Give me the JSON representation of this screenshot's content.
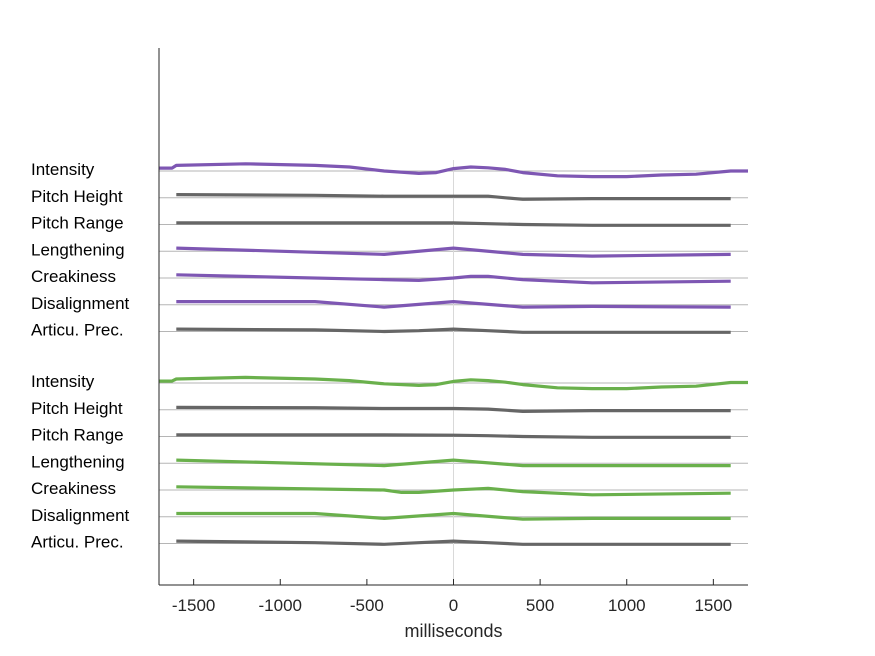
{
  "chart_data": {
    "type": "line",
    "xlabel": "milliseconds",
    "xlim": [
      -1700,
      1700
    ],
    "x_ticks": [
      -1500,
      -1000,
      -500,
      0,
      500,
      1000,
      1500
    ],
    "x_tick_labels": [
      "-1500",
      "-1000",
      "-500",
      "0",
      "500",
      "1000",
      "1500"
    ],
    "colors": {
      "purple": "#7e57b3",
      "green": "#6ab04c",
      "gray": "#666666",
      "baseline": "#b5b5b5",
      "zero": "#d9d9d9"
    },
    "groups": [
      {
        "series": [
          {
            "name": "Intensity",
            "color": "purple",
            "x": [
              -1700,
              -1625,
              -1600,
              -1200,
              -800,
              -600,
              -400,
              -200,
              -100,
              0,
              100,
              200,
              300,
              400,
              600,
              800,
              1000,
              1200,
              1400,
              1600,
              1700
            ],
            "y": [
              1.8,
              1.8,
              3.5,
              4.5,
              3.5,
              2.5,
              0,
              -1.5,
              -1,
              1.5,
              2.5,
              2,
              1,
              -1,
              -3,
              -3.5,
              -3.5,
              -2.5,
              -2,
              0,
              0
            ]
          },
          {
            "name": "Pitch Height",
            "color": "gray",
            "x": [
              -1600,
              -800,
              -400,
              0,
              200,
              300,
              400,
              800,
              1600
            ],
            "y": [
              2,
              1.5,
              1,
              1,
              1,
              0,
              -1,
              -0.5,
              -0.5
            ]
          },
          {
            "name": "Pitch Range",
            "color": "gray",
            "x": [
              -1600,
              -800,
              -400,
              0,
              200,
              400,
              800,
              1600
            ],
            "y": [
              1,
              1,
              1,
              1,
              0.5,
              0,
              -0.5,
              -0.5
            ]
          },
          {
            "name": "Lengthening",
            "color": "purple",
            "x": [
              -1600,
              -400,
              0,
              400,
              800,
              1600
            ],
            "y": [
              2,
              -2,
              2,
              -2,
              -3,
              -2
            ]
          },
          {
            "name": "Creakiness",
            "color": "purple",
            "x": [
              -1600,
              -400,
              -200,
              0,
              100,
              200,
              400,
              800,
              1600
            ],
            "y": [
              2,
              -1,
              -1.5,
              0,
              1,
              1,
              -1,
              -3,
              -2
            ]
          },
          {
            "name": "Disalignment",
            "color": "purple",
            "x": [
              -1600,
              -800,
              -400,
              0,
              400,
              800,
              1600
            ],
            "y": [
              2,
              2,
              -1.5,
              2,
              -1.5,
              -1,
              -1.5
            ]
          },
          {
            "name": "Articu. Prec.",
            "color": "gray",
            "x": [
              -1600,
              -800,
              -400,
              -200,
              0,
              200,
              400,
              800,
              1600
            ],
            "y": [
              1.5,
              1,
              0,
              0.5,
              1.5,
              0.5,
              -0.5,
              -0.5,
              -0.5
            ]
          }
        ]
      },
      {
        "series": [
          {
            "name": "Intensity",
            "color": "green",
            "x": [
              -1700,
              -1625,
              -1600,
              -1200,
              -800,
              -600,
              -400,
              -200,
              -100,
              0,
              100,
              200,
              300,
              400,
              600,
              800,
              1000,
              1200,
              1400,
              1600,
              1700
            ],
            "y": [
              1.2,
              1.2,
              2.5,
              3.5,
              2.5,
              1.5,
              -0.5,
              -1.5,
              -1,
              1,
              2,
              1.5,
              0.5,
              -1,
              -3,
              -3.5,
              -3.5,
              -2.5,
              -2,
              0.3,
              0.3
            ]
          },
          {
            "name": "Pitch Height",
            "color": "gray",
            "x": [
              -1600,
              -800,
              -400,
              0,
              200,
              300,
              400,
              800,
              1600
            ],
            "y": [
              1.5,
              1.3,
              0.8,
              0.8,
              0.4,
              -0.3,
              -1,
              -0.5,
              -0.5
            ]
          },
          {
            "name": "Pitch Range",
            "color": "gray",
            "x": [
              -1600,
              -800,
              -400,
              0,
              200,
              400,
              800,
              1600
            ],
            "y": [
              1,
              1,
              1,
              0.8,
              0.5,
              0,
              -0.5,
              -0.5
            ]
          },
          {
            "name": "Lengthening",
            "color": "green",
            "x": [
              -1600,
              -400,
              0,
              400,
              800,
              1600
            ],
            "y": [
              2,
              -1.5,
              2,
              -1.5,
              -1.5,
              -1.5
            ]
          },
          {
            "name": "Creakiness",
            "color": "green",
            "x": [
              -1600,
              -400,
              -300,
              -200,
              0,
              100,
              200,
              400,
              800,
              1600
            ],
            "y": [
              2,
              0,
              -1.5,
              -1.5,
              0,
              0.5,
              1,
              -1,
              -3,
              -2
            ]
          },
          {
            "name": "Disalignment",
            "color": "green",
            "x": [
              -1600,
              -800,
              -400,
              0,
              400,
              800,
              1600
            ],
            "y": [
              2,
              2,
              -1,
              2,
              -1.5,
              -1,
              -1
            ]
          },
          {
            "name": "Articu. Prec.",
            "color": "gray",
            "x": [
              -1600,
              -800,
              -400,
              -200,
              0,
              200,
              400,
              800,
              1600
            ],
            "y": [
              1.5,
              0.5,
              -0.5,
              0.5,
              1.5,
              0.5,
              -0.5,
              -0.5,
              -0.5
            ]
          }
        ]
      }
    ]
  }
}
